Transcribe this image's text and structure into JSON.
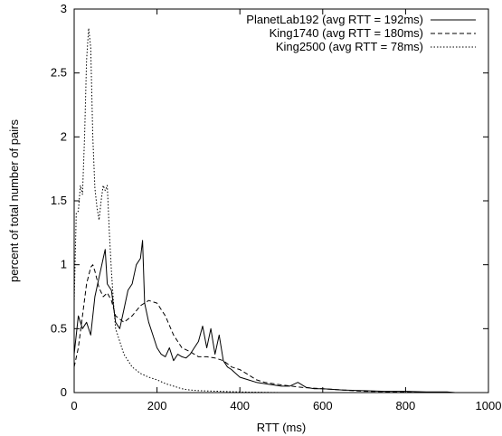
{
  "chart_data": {
    "type": "line",
    "title": "",
    "xlabel": "RTT (ms)",
    "ylabel": "percent of total number of pairs",
    "xlim": [
      0,
      1000
    ],
    "ylim": [
      0,
      3
    ],
    "xticks": [
      0,
      200,
      400,
      600,
      800,
      1000
    ],
    "xtick_labels": [
      "0",
      "200",
      "400",
      "600",
      "800",
      "1000"
    ],
    "yticks": [
      0,
      0.5,
      1,
      1.5,
      2,
      2.5,
      3
    ],
    "ytick_labels": [
      "0",
      "0.5",
      "1",
      "1.5",
      "2",
      "2.5",
      "3"
    ],
    "grid": false,
    "legend_position": "top-right",
    "series": [
      {
        "name": "PlanetLab192 (avg RTT = 192ms)",
        "style": "solid",
        "x": [
          0,
          10,
          20,
          30,
          40,
          50,
          60,
          70,
          75,
          80,
          90,
          100,
          110,
          120,
          130,
          140,
          150,
          160,
          165,
          170,
          180,
          190,
          200,
          210,
          220,
          230,
          240,
          250,
          260,
          270,
          280,
          290,
          300,
          310,
          320,
          330,
          340,
          350,
          360,
          370,
          380,
          400,
          420,
          440,
          460,
          480,
          500,
          520,
          540,
          560,
          580,
          600,
          650,
          700,
          750,
          800,
          850,
          900,
          920
        ],
        "y": [
          0.3,
          0.6,
          0.5,
          0.55,
          0.45,
          0.75,
          0.9,
          1.05,
          1.12,
          0.85,
          0.8,
          0.55,
          0.5,
          0.65,
          0.8,
          0.85,
          1.0,
          1.05,
          1.19,
          0.7,
          0.55,
          0.45,
          0.35,
          0.3,
          0.28,
          0.35,
          0.25,
          0.3,
          0.28,
          0.27,
          0.3,
          0.35,
          0.4,
          0.52,
          0.35,
          0.5,
          0.3,
          0.45,
          0.25,
          0.2,
          0.18,
          0.12,
          0.1,
          0.08,
          0.07,
          0.06,
          0.05,
          0.05,
          0.08,
          0.04,
          0.03,
          0.03,
          0.02,
          0.015,
          0.01,
          0.01,
          0.005,
          0.005,
          0.0
        ]
      },
      {
        "name": "King1740 (avg RTT = 180ms)",
        "style": "dashed",
        "x": [
          0,
          10,
          20,
          30,
          40,
          45,
          50,
          60,
          70,
          80,
          90,
          100,
          120,
          140,
          160,
          180,
          200,
          220,
          240,
          260,
          280,
          300,
          320,
          340,
          360,
          380,
          400,
          420,
          440,
          460,
          480,
          500,
          550,
          600,
          650,
          700,
          800,
          900
        ],
        "y": [
          0.2,
          0.35,
          0.6,
          0.85,
          0.98,
          1.0,
          0.95,
          0.82,
          0.75,
          0.78,
          0.72,
          0.6,
          0.55,
          0.6,
          0.68,
          0.72,
          0.7,
          0.6,
          0.45,
          0.35,
          0.32,
          0.28,
          0.28,
          0.27,
          0.25,
          0.2,
          0.18,
          0.14,
          0.1,
          0.08,
          0.07,
          0.06,
          0.04,
          0.03,
          0.02,
          0.01,
          0.005,
          0.002
        ]
      },
      {
        "name": "King2500 (avg RTT = 78ms)",
        "style": "dotted",
        "x": [
          0,
          5,
          10,
          15,
          20,
          25,
          30,
          35,
          40,
          45,
          50,
          55,
          60,
          65,
          70,
          75,
          80,
          85,
          90,
          95,
          100,
          110,
          120,
          130,
          140,
          160,
          180,
          200,
          220,
          240,
          260,
          280,
          300,
          350,
          400,
          500
        ],
        "y": [
          0.7,
          1.4,
          1.42,
          1.62,
          1.55,
          2.0,
          2.6,
          2.85,
          2.7,
          2.0,
          1.6,
          1.45,
          1.35,
          1.5,
          1.62,
          1.58,
          1.62,
          1.25,
          0.95,
          0.7,
          0.5,
          0.4,
          0.3,
          0.25,
          0.2,
          0.15,
          0.12,
          0.1,
          0.07,
          0.05,
          0.03,
          0.02,
          0.015,
          0.01,
          0.005,
          0.0
        ]
      }
    ]
  }
}
